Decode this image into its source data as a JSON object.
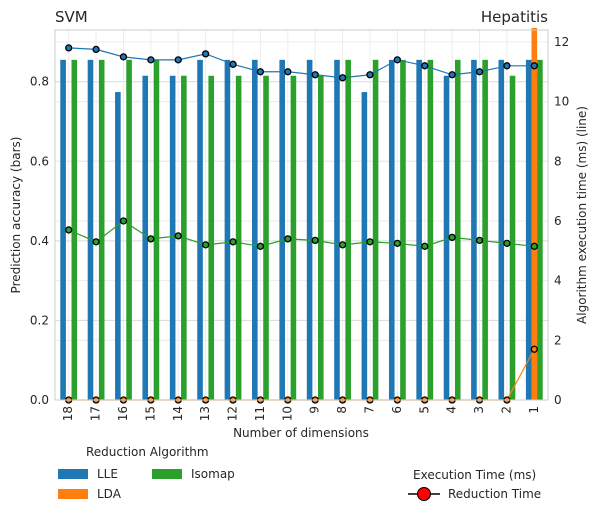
{
  "chart_data": {
    "type": "bar",
    "title_left": "SVM",
    "title_right": "Hepatitis",
    "xlabel": "Number of dimensions",
    "ylabel": "Prediction accuracy (bars)",
    "y2label": "Algorithm execution time (ms) (line)",
    "categories": [
      "18",
      "17",
      "16",
      "15",
      "14",
      "13",
      "12",
      "11",
      "10",
      "9",
      "8",
      "7",
      "6",
      "5",
      "4",
      "3",
      "2",
      "1"
    ],
    "ylim": [
      0,
      0.93
    ],
    "yticks": [
      "0.0",
      "0.2",
      "0.4",
      "0.6",
      "0.8"
    ],
    "y2lim": [
      0,
      12.4
    ],
    "y2ticks": [
      "0",
      "2",
      "4",
      "6",
      "8",
      "10",
      "12"
    ],
    "grid": true,
    "series": [
      {
        "name": "LLE",
        "color": "#1f77b4",
        "values": [
          0.855,
          0.855,
          0.774,
          0.815,
          0.815,
          0.855,
          0.855,
          0.855,
          0.855,
          0.855,
          0.855,
          0.774,
          0.855,
          0.855,
          0.815,
          0.855,
          0.855,
          0.855
        ]
      },
      {
        "name": "LDA",
        "color": "#ff7f0e",
        "values": [
          0,
          0,
          0,
          0,
          0,
          0,
          0,
          0,
          0,
          0,
          0,
          0,
          0,
          0,
          0,
          0,
          0,
          0.935
        ]
      },
      {
        "name": "Isomap",
        "color": "#2ca02c",
        "values": [
          0.855,
          0.855,
          0.855,
          0.855,
          0.815,
          0.815,
          0.815,
          0.815,
          0.815,
          0.815,
          0.855,
          0.855,
          0.855,
          0.855,
          0.855,
          0.855,
          0.815,
          0.855
        ]
      }
    ],
    "lines": [
      {
        "name": "LLE",
        "color": "#1f77b4",
        "values": [
          11.8,
          11.75,
          11.5,
          11.4,
          11.4,
          11.6,
          11.25,
          11.0,
          11.0,
          10.9,
          10.8,
          10.9,
          11.4,
          11.2,
          10.9,
          11.0,
          11.2,
          11.2
        ]
      },
      {
        "name": "LDA",
        "color": "#ff7f0e",
        "values": [
          0,
          0,
          0,
          0,
          0,
          0,
          0,
          0,
          0,
          0,
          0,
          0,
          0,
          0,
          0,
          0,
          0,
          1.7
        ]
      },
      {
        "name": "Isomap",
        "color": "#2ca02c",
        "values": [
          5.7,
          5.3,
          6.0,
          5.4,
          5.5,
          5.2,
          5.3,
          5.15,
          5.4,
          5.35,
          5.2,
          5.3,
          5.25,
          5.15,
          5.45,
          5.35,
          5.25,
          5.15
        ]
      }
    ],
    "legend": {
      "title": "Reduction Algorithm",
      "items": [
        "LLE",
        "LDA",
        "Isomap"
      ],
      "placement": "bottom-left"
    },
    "legend2": {
      "title": "Execution Time (ms)",
      "item": "Reduction Time",
      "marker_color": "#ff0000",
      "placement": "bottom-right"
    }
  }
}
